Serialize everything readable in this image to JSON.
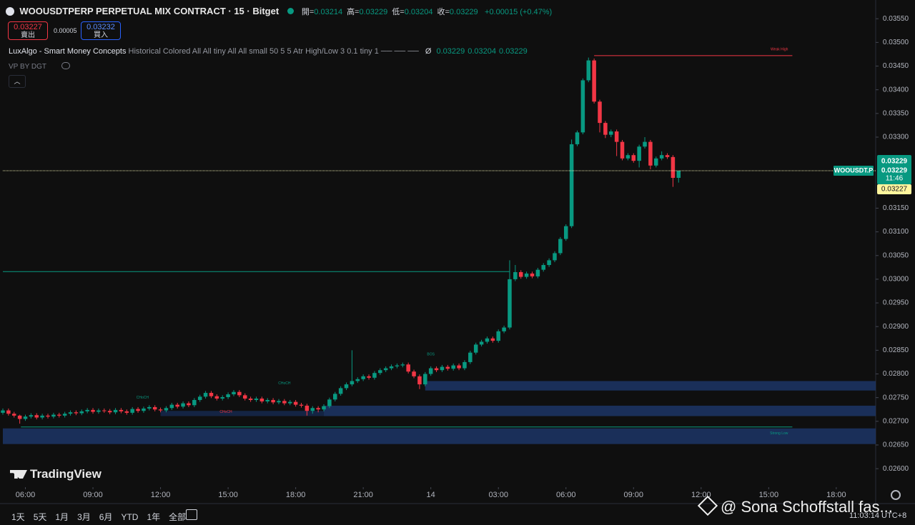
{
  "chart_data": {
    "type": "candlestick",
    "title": "WOOUSDTPERP PERPETUAL MIX CONTRACT · 15 · Bitget",
    "symbol_tag": "WOOUSDT.P",
    "countdown": "11:46",
    "last_price": 0.03229,
    "bid_price": 0.03227,
    "colors": {
      "up": "#089981",
      "down": "#f23645",
      "last_line": "#e6e6a8"
    },
    "x": [
      5,
      5.25,
      5.5,
      5.75,
      6,
      6.25,
      6.5,
      6.75,
      7,
      7.25,
      7.5,
      7.75,
      8,
      8.25,
      8.5,
      8.75,
      9,
      9.25,
      9.5,
      9.75,
      10,
      10.25,
      10.5,
      10.75,
      11,
      11.25,
      11.5,
      11.75,
      12,
      12.25,
      12.5,
      12.75,
      13,
      13.25,
      13.5,
      13.75,
      14,
      14.25,
      14.5,
      14.75,
      15,
      15.25,
      15.5,
      15.75,
      16,
      16.25,
      16.5,
      16.75,
      17,
      17.25,
      17.5,
      17.75,
      18,
      18.25,
      18.5,
      18.75,
      19,
      19.25,
      19.5,
      19.75,
      20,
      20.25,
      20.5,
      20.75,
      21,
      21.25,
      21.5,
      21.75,
      22,
      22.25,
      22.5,
      22.75,
      23,
      23.25,
      23.5,
      23.75,
      24,
      24.25,
      24.5,
      24.75,
      25,
      25.25,
      25.5,
      25.75,
      26,
      26.25,
      26.5,
      26.75,
      27,
      27.25,
      27.5,
      27.75,
      28,
      28.25,
      28.5,
      28.75,
      29,
      29.25,
      29.5,
      29.75,
      30,
      30.25,
      30.5,
      30.75,
      31,
      31.25,
      31.5,
      31.75,
      32,
      32.25,
      32.5,
      32.75,
      33,
      33.25,
      33.5,
      33.75,
      34,
      34.25,
      34.5,
      34.75,
      35
    ],
    "open": [
      0.02718,
      0.02723,
      0.02716,
      0.02712,
      0.02705,
      0.0271,
      0.02713,
      0.02708,
      0.02712,
      0.0271,
      0.02714,
      0.02712,
      0.02716,
      0.02719,
      0.02717,
      0.02721,
      0.02724,
      0.0272,
      0.02723,
      0.02722,
      0.02719,
      0.02724,
      0.02721,
      0.02718,
      0.02726,
      0.02722,
      0.02727,
      0.0273,
      0.02725,
      0.02723,
      0.02728,
      0.02735,
      0.02731,
      0.02738,
      0.02734,
      0.02745,
      0.02752,
      0.0276,
      0.02753,
      0.02748,
      0.02751,
      0.02757,
      0.02762,
      0.02755,
      0.02748,
      0.02745,
      0.02748,
      0.02742,
      0.02745,
      0.0274,
      0.02743,
      0.02738,
      0.02741,
      0.02735,
      0.02733,
      0.02722,
      0.02728,
      0.02725,
      0.02732,
      0.02746,
      0.02758,
      0.0277,
      0.02778,
      0.02785,
      0.02789,
      0.02795,
      0.02792,
      0.02802,
      0.02808,
      0.02812,
      0.02816,
      0.02818,
      0.0282,
      0.02805,
      0.02795,
      0.02778,
      0.028,
      0.02812,
      0.02808,
      0.02815,
      0.02811,
      0.02818,
      0.02812,
      0.02825,
      0.02845,
      0.02862,
      0.02868,
      0.02875,
      0.0287,
      0.0289,
      0.02898,
      0.03,
      0.03015,
      0.03005,
      0.03012,
      0.03006,
      0.0302,
      0.0303,
      0.0304,
      0.03055,
      0.03085,
      0.03112,
      0.03285,
      0.0331,
      0.0342,
      0.03462,
      0.03375,
      0.0333,
      0.03305,
      0.03312,
      0.0329,
      0.03255,
      0.03262,
      0.0325,
      0.0328,
      0.0329,
      0.0324,
      0.03255,
      0.03262,
      0.03258,
      0.03214
    ],
    "high": [
      0.02727,
      0.02727,
      0.0272,
      0.02714,
      0.02714,
      0.02717,
      0.02717,
      0.02716,
      0.02716,
      0.02718,
      0.02718,
      0.0272,
      0.02723,
      0.02723,
      0.02725,
      0.02728,
      0.02728,
      0.02727,
      0.02727,
      0.02726,
      0.02728,
      0.02728,
      0.02725,
      0.0273,
      0.0273,
      0.02731,
      0.02734,
      0.02734,
      0.02729,
      0.02732,
      0.02739,
      0.02739,
      0.02742,
      0.02742,
      0.02749,
      0.02756,
      0.02764,
      0.02764,
      0.02757,
      0.02755,
      0.02761,
      0.02766,
      0.02766,
      0.02759,
      0.02752,
      0.02752,
      0.02752,
      0.02749,
      0.02749,
      0.02747,
      0.02747,
      0.02745,
      0.02745,
      0.02739,
      0.02737,
      0.02732,
      0.02732,
      0.02736,
      0.0275,
      0.02762,
      0.02774,
      0.02782,
      0.0285,
      0.02793,
      0.02799,
      0.02799,
      0.02806,
      0.02812,
      0.02816,
      0.0282,
      0.02822,
      0.02824,
      0.02824,
      0.02809,
      0.02799,
      0.02804,
      0.02816,
      0.02816,
      0.02819,
      0.02819,
      0.02822,
      0.02822,
      0.02829,
      0.02849,
      0.02866,
      0.02872,
      0.02879,
      0.02879,
      0.02894,
      0.02902,
      0.0304,
      0.0303,
      0.03019,
      0.03016,
      0.03016,
      0.03024,
      0.03034,
      0.03044,
      0.03059,
      0.03089,
      0.03116,
      0.03295,
      0.03314,
      0.03424,
      0.03468,
      0.03466,
      0.03379,
      0.03334,
      0.03316,
      0.03316,
      0.03294,
      0.03266,
      0.03266,
      0.03284,
      0.033,
      0.03294,
      0.03259,
      0.0327,
      0.03266,
      0.03262,
      0.03229
    ],
    "low": [
      0.02714,
      0.02712,
      0.02708,
      0.02695,
      0.02701,
      0.02706,
      0.02704,
      0.02704,
      0.02706,
      0.02706,
      0.02708,
      0.02708,
      0.02712,
      0.02713,
      0.02713,
      0.02717,
      0.02716,
      0.02716,
      0.02718,
      0.02715,
      0.02715,
      0.02717,
      0.02714,
      0.02714,
      0.02718,
      0.02718,
      0.02723,
      0.02721,
      0.02719,
      0.02719,
      0.02724,
      0.02727,
      0.02727,
      0.0273,
      0.0273,
      0.02741,
      0.02748,
      0.02749,
      0.02744,
      0.02744,
      0.02747,
      0.02753,
      0.02751,
      0.02744,
      0.02741,
      0.02741,
      0.02738,
      0.02738,
      0.02736,
      0.02736,
      0.02734,
      0.02734,
      0.02731,
      0.02729,
      0.02712,
      0.02716,
      0.02719,
      0.02721,
      0.02728,
      0.02742,
      0.02754,
      0.02766,
      0.02774,
      0.02781,
      0.02785,
      0.02788,
      0.02788,
      0.02798,
      0.02804,
      0.02808,
      0.02812,
      0.02814,
      0.02801,
      0.02791,
      0.02768,
      0.02774,
      0.02796,
      0.02804,
      0.02804,
      0.02807,
      0.02807,
      0.02808,
      0.02808,
      0.02821,
      0.02841,
      0.02858,
      0.02864,
      0.02866,
      0.02866,
      0.02886,
      0.02894,
      0.02996,
      0.03001,
      0.03001,
      0.03002,
      0.03002,
      0.03016,
      0.03026,
      0.03036,
      0.03051,
      0.03081,
      0.03108,
      0.03281,
      0.03306,
      0.03416,
      0.03371,
      0.0331,
      0.03298,
      0.033,
      0.0326,
      0.03251,
      0.03251,
      0.03246,
      0.03236,
      0.03276,
      0.03232,
      0.03236,
      0.03251,
      0.03254,
      0.03195,
      0.03204
    ],
    "close": [
      0.02723,
      0.02716,
      0.02712,
      0.02705,
      0.0271,
      0.02713,
      0.02708,
      0.02712,
      0.0271,
      0.02714,
      0.02712,
      0.02716,
      0.02719,
      0.02717,
      0.02721,
      0.02724,
      0.0272,
      0.02723,
      0.02722,
      0.02719,
      0.02724,
      0.02721,
      0.02718,
      0.02726,
      0.02722,
      0.02727,
      0.0273,
      0.02725,
      0.02723,
      0.02728,
      0.02735,
      0.02731,
      0.02738,
      0.02734,
      0.02745,
      0.02752,
      0.0276,
      0.02753,
      0.02748,
      0.02751,
      0.02757,
      0.02762,
      0.02755,
      0.02748,
      0.02745,
      0.02748,
      0.02742,
      0.02745,
      0.0274,
      0.02743,
      0.02738,
      0.02741,
      0.02735,
      0.02733,
      0.02722,
      0.02728,
      0.02725,
      0.02732,
      0.02746,
      0.02758,
      0.0277,
      0.02778,
      0.02785,
      0.02789,
      0.02795,
      0.02792,
      0.02802,
      0.02808,
      0.02812,
      0.02816,
      0.02818,
      0.0282,
      0.02805,
      0.02795,
      0.02778,
      0.028,
      0.02812,
      0.02808,
      0.02815,
      0.02811,
      0.02818,
      0.02812,
      0.02825,
      0.02845,
      0.02862,
      0.02868,
      0.02875,
      0.0287,
      0.0289,
      0.02898,
      0.03,
      0.03015,
      0.03005,
      0.03012,
      0.03006,
      0.0302,
      0.0303,
      0.0304,
      0.03055,
      0.03085,
      0.03112,
      0.03285,
      0.0331,
      0.0342,
      0.03462,
      0.03375,
      0.0333,
      0.03305,
      0.03312,
      0.0329,
      0.03255,
      0.03262,
      0.0325,
      0.0328,
      0.0329,
      0.0324,
      0.03255,
      0.03262,
      0.03258,
      0.03214,
      0.03229
    ],
    "xlim": [
      5,
      43.75
    ],
    "ylim": [
      0.02564,
      0.03582
    ],
    "xticks": [
      {
        "value": 6,
        "label": "06:00"
      },
      {
        "value": 9,
        "label": "09:00"
      },
      {
        "value": 12,
        "label": "12:00"
      },
      {
        "value": 15,
        "label": "15:00"
      },
      {
        "value": 18,
        "label": "18:00"
      },
      {
        "value": 21,
        "label": "21:00"
      },
      {
        "value": 24,
        "label": "14"
      },
      {
        "value": 27,
        "label": "03:00"
      },
      {
        "value": 30,
        "label": "06:00"
      },
      {
        "value": 33,
        "label": "09:00"
      },
      {
        "value": 36,
        "label": "12:00"
      },
      {
        "value": 39,
        "label": "15:00"
      },
      {
        "value": 42,
        "label": "18:00"
      }
    ],
    "yticks": [
      {
        "value": 0.026,
        "label": "0.02600"
      },
      {
        "value": 0.0265,
        "label": "0.02650"
      },
      {
        "value": 0.027,
        "label": "0.02700"
      },
      {
        "value": 0.0275,
        "label": "0.02750"
      },
      {
        "value": 0.028,
        "label": "0.02800"
      },
      {
        "value": 0.0285,
        "label": "0.02850"
      },
      {
        "value": 0.029,
        "label": "0.02900"
      },
      {
        "value": 0.0295,
        "label": "0.02950"
      },
      {
        "value": 0.03,
        "label": "0.03000"
      },
      {
        "value": 0.0305,
        "label": "0.03050"
      },
      {
        "value": 0.031,
        "label": "0.03100"
      },
      {
        "value": 0.0315,
        "label": "0.03150"
      },
      {
        "value": 0.033,
        "label": "0.03300"
      },
      {
        "value": 0.0335,
        "label": "0.03350"
      },
      {
        "value": 0.034,
        "label": "0.03400"
      },
      {
        "value": 0.0345,
        "label": "0.03450"
      },
      {
        "value": 0.035,
        "label": "0.03500"
      },
      {
        "value": 0.0355,
        "label": "0.03550"
      }
    ],
    "grid": false,
    "zones": [
      {
        "low": 0.02765,
        "high": 0.02785,
        "start": 23.75,
        "end": 43.75,
        "color": "#1c3566"
      },
      {
        "low": 0.02711,
        "high": 0.02733,
        "start": 19.25,
        "end": 43.75,
        "color": "#1c3566"
      },
      {
        "low": 0.02711,
        "high": 0.02722,
        "start": 12,
        "end": 19.25,
        "color": "#15284c"
      },
      {
        "low": 0.02652,
        "high": 0.02685,
        "start": 5,
        "end": 43.75,
        "color": "#1c3566"
      }
    ],
    "levels": [
      {
        "value": 0.03472,
        "start": 31.25,
        "end": 40.05,
        "color": "#f23645",
        "label": "Weak High"
      },
      {
        "value": 0.02688,
        "start": 5.8,
        "end": 40.05,
        "color": "#089981",
        "label": "Strong Low"
      },
      {
        "value": 0.03016,
        "start": 5,
        "end": 27.5,
        "color": "#089981"
      }
    ],
    "annotations": [
      {
        "text": "CHoCH",
        "x": 11.2,
        "value": 0.0275,
        "color": "#089981"
      },
      {
        "text": "CHoCH",
        "x": 14.9,
        "value": 0.0272,
        "color": "#f23645"
      },
      {
        "text": "CHoCH",
        "x": 17.5,
        "value": 0.0278,
        "color": "#089981"
      },
      {
        "text": "BOS",
        "x": 24.0,
        "value": 0.02841,
        "color": "#089981"
      }
    ]
  },
  "ui": {
    "ohlc": [
      {
        "label": "開=",
        "value": "0.03214"
      },
      {
        "label": "高=",
        "value": "0.03229"
      },
      {
        "label": "低=",
        "value": "0.03204"
      },
      {
        "label": "收=",
        "value": "0.03229"
      }
    ],
    "change": "+0.00015 (+0.47%)",
    "sell_price": "0.03227",
    "sell_label": "賣出",
    "spread": "0.00005",
    "buy_price": "0.03232",
    "buy_label": "買入",
    "indicator_name": "LuxAlgo - Smart Money Concepts",
    "indicator_params": "Historical Colored All All tiny All All small 50 5 5 Atr High/Low 3 0.1 tiny 1 ── ── ──",
    "indicator_symbol": "Ø",
    "indicator_values": [
      "0.03229",
      "0.03204",
      "0.03229"
    ],
    "indicator2": "VP BY DGT",
    "brand": "TradingView",
    "ranges": [
      "1天",
      "5天",
      "1月",
      "3月",
      "6月",
      "YTD",
      "1年",
      "全部"
    ],
    "clock": "11:03:14 UTC+8",
    "watermark": "@ Sona Schoffstall fas..."
  }
}
